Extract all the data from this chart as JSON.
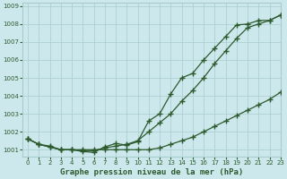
{
  "title": "Graphe pression niveau de la mer (hPa)",
  "background_color": "#cce8ec",
  "grid_color": "#a8cccc",
  "line_color": "#2d5a2d",
  "marker_color": "#2d5a2d",
  "xlim": [
    -0.5,
    23
  ],
  "ylim": [
    1000.6,
    1009.2
  ],
  "yticks": [
    1001,
    1002,
    1003,
    1004,
    1005,
    1006,
    1007,
    1008,
    1009
  ],
  "xticks": [
    0,
    1,
    2,
    3,
    4,
    5,
    6,
    7,
    8,
    9,
    10,
    11,
    12,
    13,
    14,
    15,
    16,
    17,
    18,
    19,
    20,
    21,
    22,
    23
  ],
  "line1_x": [
    0,
    1,
    2,
    3,
    4,
    5,
    6,
    7,
    8,
    9,
    10,
    11,
    12,
    13,
    14,
    15,
    16,
    17,
    18,
    19,
    20,
    21,
    22,
    23
  ],
  "line1": [
    1001.6,
    1001.3,
    1001.15,
    1001.0,
    1001.0,
    1001.0,
    1001.0,
    1001.0,
    1001.0,
    1001.0,
    1001.0,
    1001.0,
    1001.1,
    1001.3,
    1001.5,
    1001.7,
    1002.0,
    1002.3,
    1002.6,
    1002.9,
    1003.2,
    1003.5,
    1003.8,
    1004.2
  ],
  "line2_x": [
    0,
    1,
    2,
    3,
    4,
    5,
    6,
    7,
    8,
    9,
    10,
    11,
    12,
    13,
    14,
    15,
    16,
    17,
    18,
    19,
    20,
    21,
    22,
    23
  ],
  "line2": [
    1001.6,
    1001.3,
    1001.2,
    1001.0,
    1001.0,
    1000.95,
    1000.95,
    1001.1,
    1001.2,
    1001.3,
    1001.5,
    1002.0,
    1002.5,
    1003.0,
    1003.7,
    1004.3,
    1005.0,
    1005.8,
    1006.5,
    1007.2,
    1007.8,
    1008.0,
    1008.2,
    1008.5
  ],
  "line3_x": [
    0,
    1,
    2,
    3,
    4,
    5,
    6,
    7,
    8,
    9,
    10,
    11,
    12,
    13,
    14,
    15,
    16,
    17,
    18,
    19,
    20,
    21,
    22,
    23
  ],
  "line3": [
    1001.6,
    1001.3,
    1001.15,
    1001.0,
    1001.0,
    1000.9,
    1000.85,
    1001.15,
    1001.35,
    1001.25,
    1001.45,
    1002.6,
    1003.0,
    1004.1,
    1005.0,
    1005.25,
    1006.0,
    1006.65,
    1007.3,
    1007.95,
    1008.0,
    1008.2,
    1008.2,
    1008.5
  ]
}
